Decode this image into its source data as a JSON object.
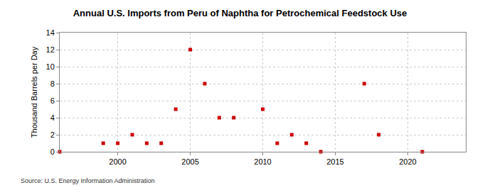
{
  "chart_data": {
    "type": "scatter",
    "title": "Annual U.S. Imports from Peru of Naphtha for Petrochemical Feedstock Use",
    "y_label": "Thousand Barrels per Day",
    "source": "Source: U.S. Energy Information Administration",
    "x": [
      1996,
      1999,
      2000,
      2001,
      2002,
      2003,
      2004,
      2005,
      2006,
      2007,
      2008,
      2010,
      2011,
      2012,
      2013,
      2014,
      2017,
      2018,
      2021
    ],
    "values": [
      0,
      1,
      1,
      2,
      1,
      1,
      5,
      12,
      8,
      4,
      4,
      5,
      1,
      2,
      1,
      0,
      8,
      2,
      0
    ],
    "color": "#cc0000",
    "marker": "square",
    "xlim": [
      1996,
      2024
    ],
    "xticks": [
      2000,
      2005,
      2010,
      2015,
      2020
    ],
    "ylim": [
      0,
      14
    ],
    "yticks": [
      0,
      2,
      4,
      6,
      8,
      10,
      12,
      14
    ],
    "grid": true
  }
}
